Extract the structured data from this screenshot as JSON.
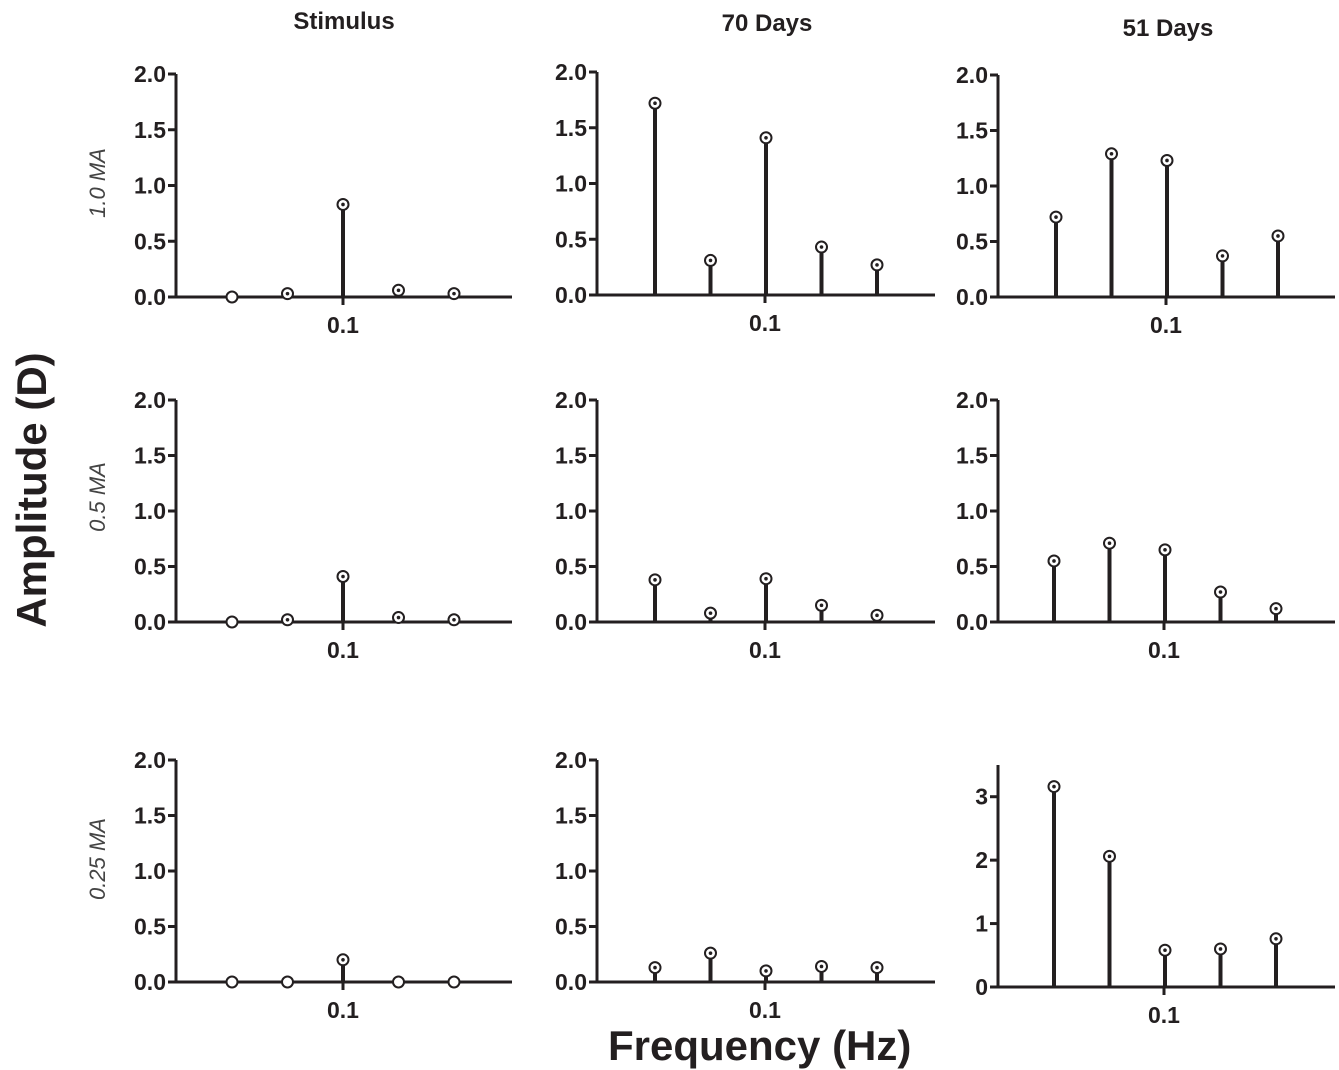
{
  "columns": [
    "Stimulus",
    "70 Days",
    "51 Days"
  ],
  "rows": [
    "1.0 MA",
    "0.5 MA",
    "0.25 MA"
  ],
  "ylabel": "Amplitude (D)",
  "xlabel": "Frequency (Hz)",
  "chart_data": [
    {
      "type": "stem",
      "column": "Stimulus",
      "row": "1.0 MA",
      "x_tick_labels": [
        "0.1"
      ],
      "y_ticks": [
        "0.0",
        "0.5",
        "1.0",
        "1.5",
        "2.0"
      ],
      "ylim": [
        0,
        2.0
      ],
      "values": [
        0.0,
        0.03,
        0.83,
        0.06,
        0.03
      ]
    },
    {
      "type": "stem",
      "column": "70 Days",
      "row": "1.0 MA",
      "x_tick_labels": [
        "0.1"
      ],
      "y_ticks": [
        "0.0",
        "0.5",
        "1.0",
        "1.5",
        "2.0"
      ],
      "ylim": [
        0,
        2.0
      ],
      "values": [
        1.72,
        0.31,
        1.41,
        0.43,
        0.27
      ]
    },
    {
      "type": "stem",
      "column": "51 Days",
      "row": "1.0 MA",
      "x_tick_labels": [
        "0.1"
      ],
      "y_ticks": [
        "0.0",
        "0.5",
        "1.0",
        "1.5",
        "2.0"
      ],
      "ylim": [
        0,
        2.0
      ],
      "values": [
        0.72,
        1.29,
        1.23,
        0.37,
        0.55
      ]
    },
    {
      "type": "stem",
      "column": "Stimulus",
      "row": "0.5 MA",
      "x_tick_labels": [
        "0.1"
      ],
      "y_ticks": [
        "0.0",
        "0.5",
        "1.0",
        "1.5",
        "2.0"
      ],
      "ylim": [
        0,
        2.0
      ],
      "values": [
        0.0,
        0.02,
        0.41,
        0.04,
        0.02
      ]
    },
    {
      "type": "stem",
      "column": "70 Days",
      "row": "0.5 MA",
      "x_tick_labels": [
        "0.1"
      ],
      "y_ticks": [
        "0.0",
        "0.5",
        "1.0",
        "1.5",
        "2.0"
      ],
      "ylim": [
        0,
        2.0
      ],
      "values": [
        0.38,
        0.08,
        0.39,
        0.15,
        0.06
      ]
    },
    {
      "type": "stem",
      "column": "51 Days",
      "row": "0.5 MA",
      "x_tick_labels": [
        "0.1"
      ],
      "y_ticks": [
        "0.0",
        "0.5",
        "1.0",
        "1.5",
        "2.0"
      ],
      "ylim": [
        0,
        2.0
      ],
      "values": [
        0.55,
        0.71,
        0.65,
        0.27,
        0.12
      ]
    },
    {
      "type": "stem",
      "column": "Stimulus",
      "row": "0.25 MA",
      "x_tick_labels": [
        "0.1"
      ],
      "y_ticks": [
        "0.0",
        "0.5",
        "1.0",
        "1.5",
        "2.0"
      ],
      "ylim": [
        0,
        2.0
      ],
      "values": [
        0.0,
        0.0,
        0.2,
        0.0,
        0.0
      ]
    },
    {
      "type": "stem",
      "column": "70 Days",
      "row": "0.25 MA",
      "x_tick_labels": [
        "0.1"
      ],
      "y_ticks": [
        "0.0",
        "0.5",
        "1.0",
        "1.5",
        "2.0"
      ],
      "ylim": [
        0,
        2.0
      ],
      "values": [
        0.13,
        0.26,
        0.1,
        0.14,
        0.13
      ]
    },
    {
      "type": "stem",
      "column": "51 Days",
      "row": "0.25 MA",
      "x_tick_labels": [
        "0.1"
      ],
      "y_ticks": [
        "0",
        "1",
        "2",
        "3"
      ],
      "ylim": [
        0,
        3.5
      ],
      "values": [
        3.16,
        2.06,
        0.58,
        0.6,
        0.76
      ]
    }
  ]
}
